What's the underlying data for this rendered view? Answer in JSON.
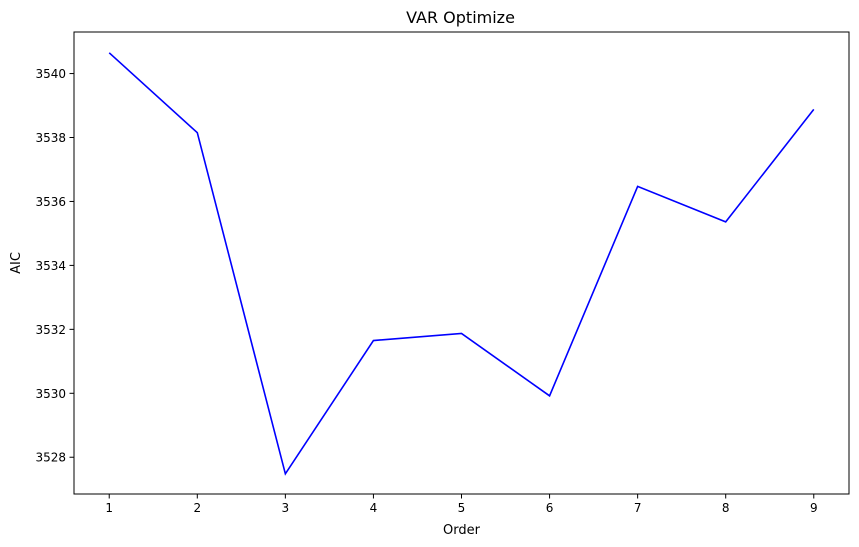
{
  "chart_data": {
    "type": "line",
    "title": "VAR Optimize",
    "xlabel": "Order",
    "ylabel": "AIC",
    "x": [
      1,
      2,
      3,
      4,
      5,
      6,
      7,
      8,
      9
    ],
    "series": [
      {
        "values": [
          3540.65,
          3538.15,
          3527.48,
          3531.65,
          3531.87,
          3529.92,
          3536.47,
          3535.36,
          3538.88
        ],
        "color": "#0000ff"
      }
    ],
    "xticks": [
      1,
      2,
      3,
      4,
      5,
      6,
      7,
      8,
      9
    ],
    "yticks": [
      3528,
      3530,
      3532,
      3534,
      3536,
      3538,
      3540
    ],
    "xlim": [
      0.6,
      9.4
    ],
    "ylim": [
      3526.85,
      3541.3
    ],
    "grid": false,
    "legend": "none"
  }
}
